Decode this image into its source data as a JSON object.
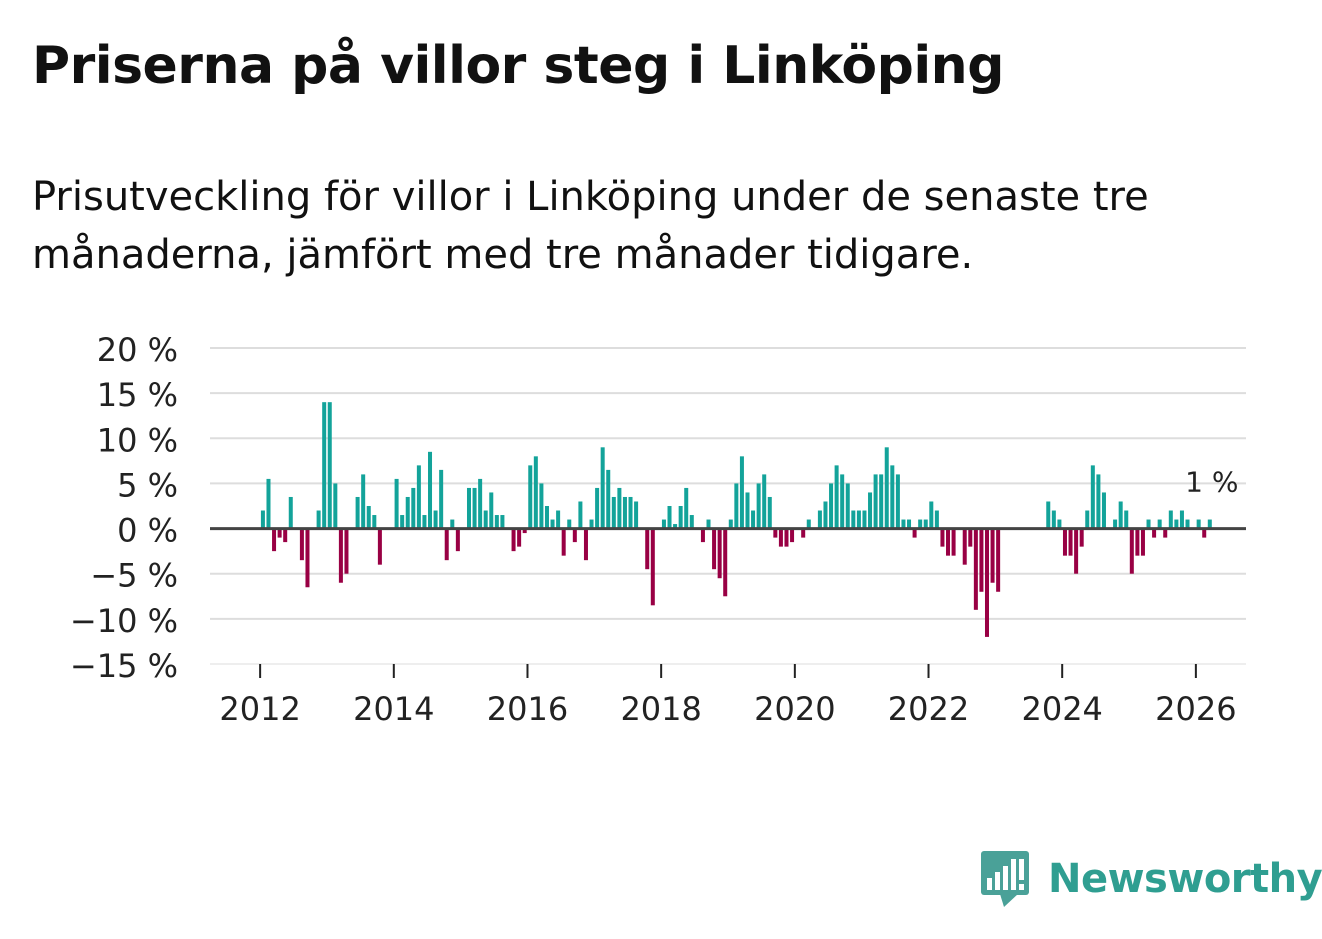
{
  "title": "Priserna på villor steg i Linköping",
  "subtitle": "Prisutveckling för villor i Linköping under de senaste tre månaderna, jämfört med tre månader tidigare.",
  "brand": {
    "name": "Newsworthy",
    "color": "#2f9e91"
  },
  "chart_data": {
    "type": "bar",
    "title": "Priserna på villor steg i Linköping",
    "xlabel": "",
    "ylabel": "",
    "ylim": [
      -15,
      20
    ],
    "xlim": [
      2011.25,
      2026.75
    ],
    "yticks": [
      20,
      15,
      10,
      5,
      0,
      -5,
      -10,
      -15
    ],
    "ytick_labels": [
      "20 %",
      "15 %",
      "10 %",
      "5 %",
      "0 %",
      "−5 %",
      "−10 %",
      "−15 %"
    ],
    "xticks": [
      2012,
      2014,
      2016,
      2018,
      2020,
      2022,
      2024,
      2026
    ],
    "xtick_labels": [
      "2012",
      "2014",
      "2016",
      "2018",
      "2020",
      "2022",
      "2024",
      "2026"
    ],
    "positive_color": "#13a39a",
    "negative_color": "#990044",
    "grid": true,
    "annotation": {
      "text": "1 %",
      "position": "last bar"
    },
    "start": {
      "year": 2012,
      "month": 1
    },
    "values": [
      2,
      5.5,
      -2.5,
      -1,
      -1.5,
      3.5,
      0,
      -3.5,
      -6.5,
      0,
      2,
      14,
      14,
      5,
      -6,
      -5,
      0,
      3.5,
      6,
      2.5,
      1.5,
      -4,
      0,
      0,
      5.5,
      1.5,
      3.5,
      4.5,
      7,
      1.5,
      8.5,
      2,
      6.5,
      -3.5,
      1,
      -2.5,
      0,
      4.5,
      4.5,
      5.5,
      2,
      4,
      1.5,
      1.5,
      0,
      -2.5,
      -2,
      -0.5,
      7,
      8,
      5,
      2.5,
      1,
      2,
      -3,
      1,
      -1.5,
      3,
      -3.5,
      1,
      4.5,
      9,
      6.5,
      3.5,
      4.5,
      3.5,
      3.5,
      3,
      0,
      -4.5,
      -8.5,
      0,
      1,
      2.5,
      0.5,
      2.5,
      4.5,
      1.5,
      0,
      -1.5,
      1,
      -4.5,
      -5.5,
      -7.5,
      1,
      5,
      8,
      4,
      2,
      5,
      6,
      3.5,
      -1,
      -2,
      -2,
      -1.5,
      0,
      -1,
      1,
      0,
      2,
      3,
      5,
      7,
      6,
      5,
      2,
      2,
      2,
      4,
      6,
      6,
      9,
      7,
      6,
      1,
      1,
      -1,
      1,
      1,
      3,
      2,
      -2,
      -3,
      -3,
      0,
      -4,
      -2,
      -9,
      -7,
      -12,
      -6,
      -7,
      0,
      0,
      0,
      0,
      0,
      0,
      0,
      0,
      3,
      2,
      1,
      -3,
      -3,
      -5,
      -2,
      2,
      7,
      6,
      4,
      0,
      1,
      3,
      2,
      -5,
      -3,
      -3,
      1,
      -1,
      1,
      -1,
      2,
      1,
      2,
      1,
      0,
      1,
      -1,
      1
    ]
  }
}
